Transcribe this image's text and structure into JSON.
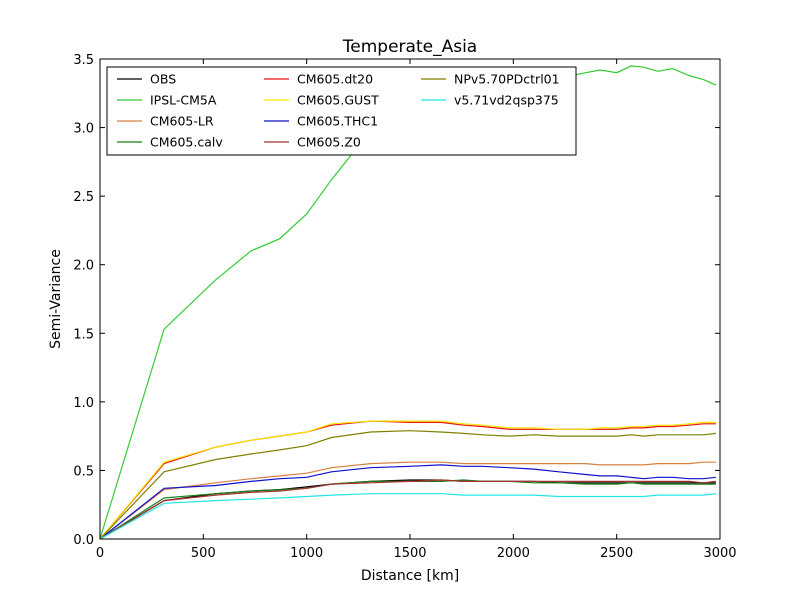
{
  "chart_data": {
    "type": "line",
    "title": "Temperate_Asia",
    "xlabel": "Distance [km]",
    "ylabel": "Semi-Variance",
    "xlim": [
      0,
      3000
    ],
    "ylim": [
      0,
      3.5
    ],
    "xticks": [
      0,
      500,
      1000,
      1500,
      2000,
      2500,
      3000
    ],
    "xtick_labels": [
      "0",
      "500",
      "1000",
      "1500",
      "2000",
      "2500",
      "3000"
    ],
    "yticks": [
      0,
      0.5,
      1.0,
      1.5,
      2.0,
      2.5,
      3.0,
      3.5
    ],
    "ytick_labels": [
      "0.0",
      "0.5",
      "1.0",
      "1.5",
      "2.0",
      "2.5",
      "3.0",
      "3.5"
    ],
    "grid": false,
    "legend_position": "top-left",
    "legend_columns": 3,
    "x": [
      0,
      310,
      560,
      730,
      870,
      1000,
      1120,
      1310,
      1500,
      1650,
      1760,
      1850,
      1980,
      2100,
      2220,
      2350,
      2420,
      2500,
      2570,
      2630,
      2700,
      2770,
      2850,
      2920,
      2980
    ],
    "series": [
      {
        "name": "OBS",
        "color": "#000000",
        "values": [
          0,
          0.28,
          0.33,
          0.35,
          0.36,
          0.38,
          0.4,
          0.42,
          0.43,
          0.43,
          0.42,
          0.42,
          0.42,
          0.42,
          0.41,
          0.41,
          0.41,
          0.41,
          0.41,
          0.41,
          0.41,
          0.41,
          0.41,
          0.41,
          0.41
        ]
      },
      {
        "name": "IPSL-CM5A",
        "color": "#33cc33",
        "values": [
          0,
          1.53,
          1.89,
          2.1,
          2.19,
          2.37,
          2.62,
          2.98,
          3.18,
          3.27,
          3.31,
          3.34,
          3.34,
          3.35,
          3.36,
          3.4,
          3.42,
          3.4,
          3.45,
          3.44,
          3.41,
          3.43,
          3.38,
          3.35,
          3.31
        ]
      },
      {
        "name": "CM605-LR",
        "color": "#d98040",
        "values": [
          0,
          0.36,
          0.41,
          0.44,
          0.46,
          0.48,
          0.52,
          0.55,
          0.56,
          0.56,
          0.55,
          0.55,
          0.55,
          0.55,
          0.55,
          0.55,
          0.54,
          0.54,
          0.54,
          0.54,
          0.55,
          0.55,
          0.55,
          0.56,
          0.56
        ]
      },
      {
        "name": "CM605.calv",
        "color": "#158015",
        "values": [
          0,
          0.3,
          0.33,
          0.35,
          0.36,
          0.37,
          0.4,
          0.42,
          0.42,
          0.42,
          0.43,
          0.42,
          0.42,
          0.41,
          0.41,
          0.4,
          0.4,
          0.4,
          0.41,
          0.4,
          0.4,
          0.4,
          0.4,
          0.4,
          0.4
        ]
      },
      {
        "name": "CM605.dt20",
        "color": "#ee1111",
        "values": [
          0,
          0.55,
          0.67,
          0.72,
          0.75,
          0.78,
          0.83,
          0.86,
          0.85,
          0.85,
          0.83,
          0.82,
          0.8,
          0.8,
          0.8,
          0.8,
          0.8,
          0.8,
          0.81,
          0.81,
          0.82,
          0.82,
          0.83,
          0.84,
          0.84
        ]
      },
      {
        "name": "CM605.GUST",
        "color": "#f5e600",
        "values": [
          0,
          0.56,
          0.67,
          0.72,
          0.75,
          0.78,
          0.84,
          0.86,
          0.86,
          0.86,
          0.84,
          0.83,
          0.81,
          0.81,
          0.8,
          0.8,
          0.81,
          0.81,
          0.82,
          0.82,
          0.83,
          0.83,
          0.84,
          0.85,
          0.85
        ]
      },
      {
        "name": "CM605.THC1",
        "color": "#1010cc",
        "values": [
          0,
          0.37,
          0.39,
          0.42,
          0.44,
          0.45,
          0.49,
          0.52,
          0.53,
          0.54,
          0.53,
          0.53,
          0.52,
          0.51,
          0.49,
          0.47,
          0.46,
          0.46,
          0.45,
          0.44,
          0.45,
          0.45,
          0.44,
          0.44,
          0.45
        ]
      },
      {
        "name": "CM605.Z0",
        "color": "#a83232",
        "values": [
          0,
          0.28,
          0.32,
          0.34,
          0.35,
          0.37,
          0.4,
          0.41,
          0.42,
          0.43,
          0.42,
          0.42,
          0.42,
          0.42,
          0.42,
          0.42,
          0.42,
          0.42,
          0.42,
          0.42,
          0.42,
          0.42,
          0.42,
          0.41,
          0.42
        ]
      },
      {
        "name": "NPv5.70PDctrl01",
        "color": "#808000",
        "values": [
          0,
          0.49,
          0.58,
          0.62,
          0.65,
          0.68,
          0.74,
          0.78,
          0.79,
          0.78,
          0.77,
          0.76,
          0.75,
          0.76,
          0.75,
          0.75,
          0.75,
          0.75,
          0.76,
          0.75,
          0.76,
          0.76,
          0.76,
          0.76,
          0.77
        ]
      },
      {
        "name": "v5.71vd2qsp375",
        "color": "#22e5e5",
        "values": [
          0,
          0.26,
          0.28,
          0.29,
          0.3,
          0.31,
          0.32,
          0.33,
          0.33,
          0.33,
          0.32,
          0.32,
          0.32,
          0.32,
          0.31,
          0.31,
          0.31,
          0.31,
          0.31,
          0.31,
          0.32,
          0.32,
          0.32,
          0.32,
          0.33
        ]
      }
    ]
  }
}
